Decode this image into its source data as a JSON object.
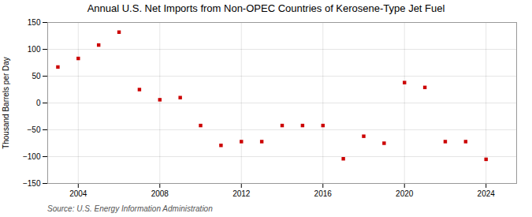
{
  "chart_data": {
    "type": "scatter",
    "title": "Annual U.S. Net Imports from Non-OPEC Countries of Kerosene-Type Jet Fuel",
    "ylabel": "Thousand Barrels per Day",
    "source": "Source: U.S. Energy Information Administration",
    "x": [
      2003,
      2004,
      2005,
      2006,
      2007,
      2008,
      2009,
      2010,
      2011,
      2012,
      2013,
      2014,
      2015,
      2016,
      2017,
      2018,
      2019,
      2020,
      2021,
      2022,
      2023,
      2024
    ],
    "values": [
      67,
      83,
      108,
      132,
      25,
      6,
      10,
      -42,
      -79,
      -72,
      -72,
      -42,
      -42,
      -42,
      -104,
      -62,
      -75,
      38,
      29,
      -72,
      -72,
      -105
    ],
    "color": "#cc0000",
    "marker": "square",
    "xlim": [
      2002.5,
      2025.5
    ],
    "xticks": [
      2004,
      2008,
      2012,
      2016,
      2020,
      2024
    ],
    "ylim": [
      -150,
      150
    ],
    "yticks": [
      -150,
      -100,
      -50,
      0,
      50,
      100,
      150
    ],
    "grid": true
  }
}
